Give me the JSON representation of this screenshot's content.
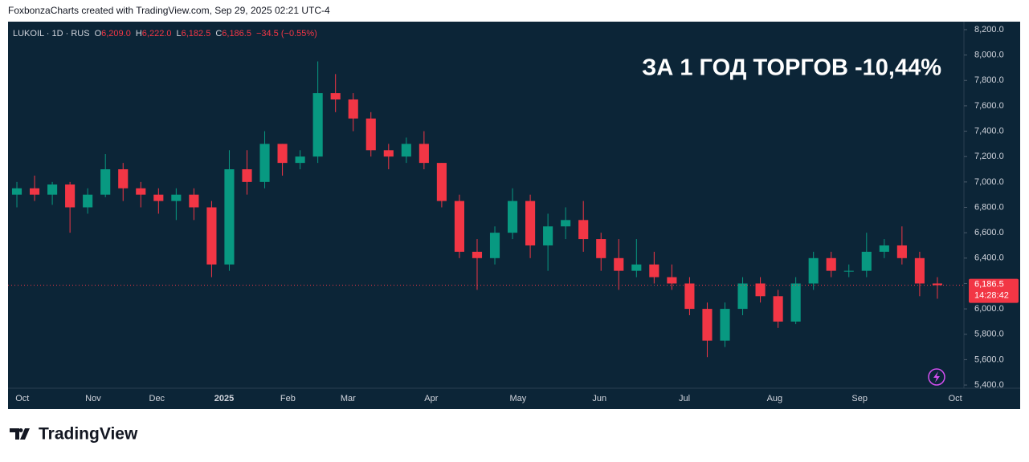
{
  "attribution": "FoxbonzaCharts created with TradingView.com, Sep 29, 2025 02:21 UTC-4",
  "brand": "TradingView",
  "chart_data": {
    "type": "candlestick",
    "title": "ЗА 1 ГОД ТОРГОВ -10,44%",
    "symbol": "LUKOIL · 1D · RUS",
    "legend": [
      {
        "label": "O",
        "value": "6,209.0"
      },
      {
        "label": "H",
        "value": "6,222.0"
      },
      {
        "label": "L",
        "value": "6,182.5"
      },
      {
        "label": "C",
        "value": "6,186.5"
      }
    ],
    "change": "−34.5 (−0.55%)",
    "last_price": {
      "value": 6186.5,
      "label": "6,186.5"
    },
    "countdown": "14:28:42",
    "up_color": "#089981",
    "down_color": "#f23645",
    "open": [
      6900,
      6950,
      6900,
      6980,
      6800,
      6900,
      7100,
      6950,
      6900,
      6850,
      6900,
      6800,
      6350,
      7100,
      7000,
      7300,
      7150,
      7200,
      7700,
      7650,
      7500,
      7250,
      7200,
      7300,
      7150,
      6850,
      6450,
      6400,
      6600,
      6850,
      6500,
      6650,
      6700,
      6550,
      6400,
      6300,
      6350,
      6250,
      6200,
      6000,
      5750,
      6000,
      6200,
      6100,
      5900,
      6200,
      6400,
      6300,
      6300,
      6450,
      6500,
      6400,
      6200
    ],
    "high": [
      7000,
      7050,
      7000,
      7000,
      6950,
      7220,
      7150,
      7000,
      6950,
      6950,
      6950,
      6850,
      7250,
      7250,
      7400,
      7300,
      7250,
      7950,
      7850,
      7700,
      7550,
      7300,
      7350,
      7400,
      7150,
      6900,
      6550,
      6650,
      6950,
      6900,
      6750,
      6800,
      6850,
      6600,
      6550,
      6550,
      6450,
      6350,
      6250,
      6050,
      6050,
      6250,
      6250,
      6150,
      6250,
      6450,
      6450,
      6350,
      6600,
      6550,
      6650,
      6450,
      6250
    ],
    "low": [
      6800,
      6850,
      6820,
      6600,
      6750,
      6880,
      6850,
      6800,
      6750,
      6700,
      6700,
      6250,
      6300,
      6900,
      6950,
      7050,
      7100,
      7150,
      7550,
      7400,
      7200,
      7100,
      7150,
      7100,
      6800,
      6400,
      6150,
      6350,
      6550,
      6400,
      6300,
      6550,
      6450,
      6300,
      6150,
      6250,
      6200,
      6150,
      5950,
      5620,
      5700,
      5950,
      6050,
      5850,
      5880,
      6150,
      6250,
      6250,
      6250,
      6400,
      6350,
      6100,
      6080
    ],
    "close": [
      6950,
      6900,
      6980,
      6800,
      6900,
      7100,
      6950,
      6900,
      6850,
      6900,
      6800,
      6350,
      7100,
      7000,
      7300,
      7150,
      7200,
      7700,
      7650,
      7500,
      7250,
      7200,
      7300,
      7150,
      6850,
      6450,
      6400,
      6600,
      6850,
      6500,
      6650,
      6700,
      6550,
      6400,
      6300,
      6350,
      6250,
      6200,
      6000,
      5750,
      6000,
      6200,
      6100,
      5900,
      6200,
      6400,
      6300,
      6300,
      6450,
      6500,
      6400,
      6200,
      6186.5
    ],
    "xlim": [
      -0.5,
      53.5
    ],
    "xticks": [
      {
        "value": -0.1,
        "label": "Oct"
      },
      {
        "value": 3.9,
        "label": "Nov"
      },
      {
        "value": 7.5,
        "label": "Dec"
      },
      {
        "value": 11.3,
        "label": "2025"
      },
      {
        "value": 14.9,
        "label": "Feb"
      },
      {
        "value": 18.3,
        "label": "Mar"
      },
      {
        "value": 23.0,
        "label": "Apr"
      },
      {
        "value": 27.9,
        "label": "May"
      },
      {
        "value": 32.5,
        "label": "Jun"
      },
      {
        "value": 37.3,
        "label": "Jul"
      },
      {
        "value": 42.4,
        "label": "Aug"
      },
      {
        "value": 47.2,
        "label": "Sep"
      },
      {
        "value": 52.6,
        "label": "Oct"
      }
    ],
    "ylim": [
      5375,
      8263
    ],
    "yticks": [
      {
        "value": 5400,
        "label": "5,400.0"
      },
      {
        "value": 5600,
        "label": "5,600.0"
      },
      {
        "value": 5800,
        "label": "5,800.0"
      },
      {
        "value": 6000,
        "label": "6,000.0"
      },
      {
        "value": 6200,
        "label": "6,200.0"
      },
      {
        "value": 6400,
        "label": "6,400.0"
      },
      {
        "value": 6600,
        "label": "6,600.0"
      },
      {
        "value": 6800,
        "label": "6,800.0"
      },
      {
        "value": 7000,
        "label": "7,000.0"
      },
      {
        "value": 7200,
        "label": "7,200.0"
      },
      {
        "value": 7400,
        "label": "7,400.0"
      },
      {
        "value": 7600,
        "label": "7,600.0"
      },
      {
        "value": 7800,
        "label": "7,800.0"
      },
      {
        "value": 8000,
        "label": "8,000.0"
      },
      {
        "value": 8200,
        "label": "8,200.0"
      }
    ]
  }
}
